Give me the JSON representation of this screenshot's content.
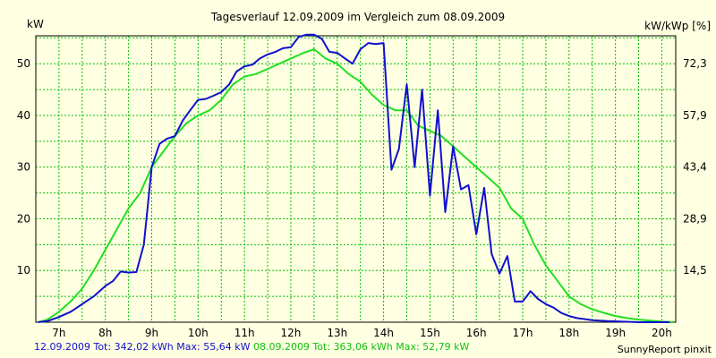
{
  "title": "Tagesverlauf 12.09.2009 im Vergleich zum 08.09.2009",
  "units": {
    "left": "kW",
    "right": "kW/kWp [%]"
  },
  "footer": {
    "series1_text": "12.09.2009 Tot: 342,02 kWh Max: 55,64 kW",
    "series2_text": "08.09.2009 Tot: 363,06 kWh Max: 52,79 kW",
    "brand": "SunnyReport pinxit"
  },
  "colors": {
    "background": "#ffffe1",
    "grid": "#00c000",
    "series1": "#1010d0",
    "series2": "#20e020"
  },
  "chart_data": {
    "type": "line",
    "title": "Tagesverlauf 12.09.2009 im Vergleich zum 08.09.2009",
    "xlabel": "",
    "ylabel": "kW",
    "y2label": "kW/kWp [%]",
    "xlim": [
      6.5,
      20.3
    ],
    "ylim": [
      0,
      55.4
    ],
    "grid": true,
    "x_ticks": [
      "7h",
      "8h",
      "9h",
      "10h",
      "11h",
      "12h",
      "13h",
      "14h",
      "15h",
      "16h",
      "17h",
      "18h",
      "19h",
      "20h"
    ],
    "x_tick_values": [
      7,
      8,
      9,
      10,
      11,
      12,
      13,
      14,
      15,
      16,
      17,
      18,
      19,
      20
    ],
    "y_ticks": [
      10,
      20,
      30,
      40,
      50
    ],
    "y2_ticks": [
      "14,5",
      "28,9",
      "43,4",
      "57,9",
      "72,3"
    ],
    "series": [
      {
        "name": "12.09.2009",
        "x": [
          6.55,
          6.75,
          7.0,
          7.25,
          7.5,
          7.75,
          8.0,
          8.17,
          8.33,
          8.5,
          8.67,
          8.83,
          9.0,
          9.17,
          9.33,
          9.5,
          9.67,
          9.83,
          10.0,
          10.17,
          10.33,
          10.5,
          10.67,
          10.83,
          11.0,
          11.17,
          11.33,
          11.5,
          11.67,
          11.83,
          12.0,
          12.17,
          12.33,
          12.5,
          12.67,
          12.83,
          13.0,
          13.17,
          13.33,
          13.5,
          13.67,
          13.83,
          14.0,
          14.17,
          14.33,
          14.5,
          14.67,
          14.83,
          15.0,
          15.17,
          15.33,
          15.5,
          15.67,
          15.83,
          16.0,
          16.17,
          16.33,
          16.5,
          16.67,
          16.83,
          17.0,
          17.17,
          17.33,
          17.5,
          17.67,
          17.83,
          18.0,
          18.17,
          18.5,
          18.83,
          19.17,
          19.5,
          19.83,
          20.17
        ],
        "y": [
          0,
          0.2,
          1,
          2,
          3.5,
          5,
          7,
          8,
          9.8,
          9.6,
          9.7,
          15,
          30,
          34.5,
          35.5,
          36,
          39,
          41,
          43,
          43.2,
          43.8,
          44.5,
          46,
          48.5,
          49.5,
          49.8,
          51,
          51.8,
          52.3,
          53,
          53.2,
          55.2,
          55.6,
          55.6,
          54.8,
          52.3,
          52.1,
          51,
          50,
          52.8,
          54,
          53.8,
          54,
          29.5,
          33.5,
          46,
          30,
          45,
          24.5,
          41,
          21.3,
          34,
          25.7,
          26.5,
          17,
          26,
          13.2,
          9.4,
          12.8,
          4,
          4,
          6,
          4.5,
          3.5,
          2.8,
          1.8,
          1.2,
          0.8,
          0.4,
          0.2,
          0.1,
          0,
          0,
          0
        ]
      },
      {
        "name": "08.09.2009",
        "x": [
          6.55,
          6.75,
          7.0,
          7.25,
          7.5,
          7.75,
          8.0,
          8.25,
          8.5,
          8.75,
          9.0,
          9.25,
          9.5,
          9.75,
          10.0,
          10.25,
          10.5,
          10.75,
          11.0,
          11.25,
          11.5,
          11.75,
          12.0,
          12.25,
          12.5,
          12.75,
          13.0,
          13.25,
          13.5,
          13.75,
          14.0,
          14.25,
          14.5,
          14.75,
          15.0,
          15.25,
          15.5,
          15.75,
          16.0,
          16.25,
          16.5,
          16.75,
          17.0,
          17.25,
          17.5,
          17.75,
          18.0,
          18.25,
          18.5,
          18.75,
          19.0,
          19.25,
          19.5,
          19.75,
          20.0,
          20.25
        ],
        "y": [
          0,
          0.5,
          2,
          4,
          6.5,
          10,
          14,
          18,
          22,
          25,
          30,
          33,
          36,
          38.5,
          40,
          41,
          43,
          46,
          47.5,
          48,
          49,
          50,
          51,
          52,
          52.8,
          51,
          50,
          48,
          46.5,
          44,
          42,
          41,
          41,
          38,
          37,
          36,
          34,
          32,
          30,
          28,
          26,
          22,
          20,
          15,
          11,
          8,
          5,
          3.5,
          2.5,
          1.8,
          1.2,
          0.8,
          0.5,
          0.3,
          0.1,
          0
        ]
      }
    ]
  }
}
